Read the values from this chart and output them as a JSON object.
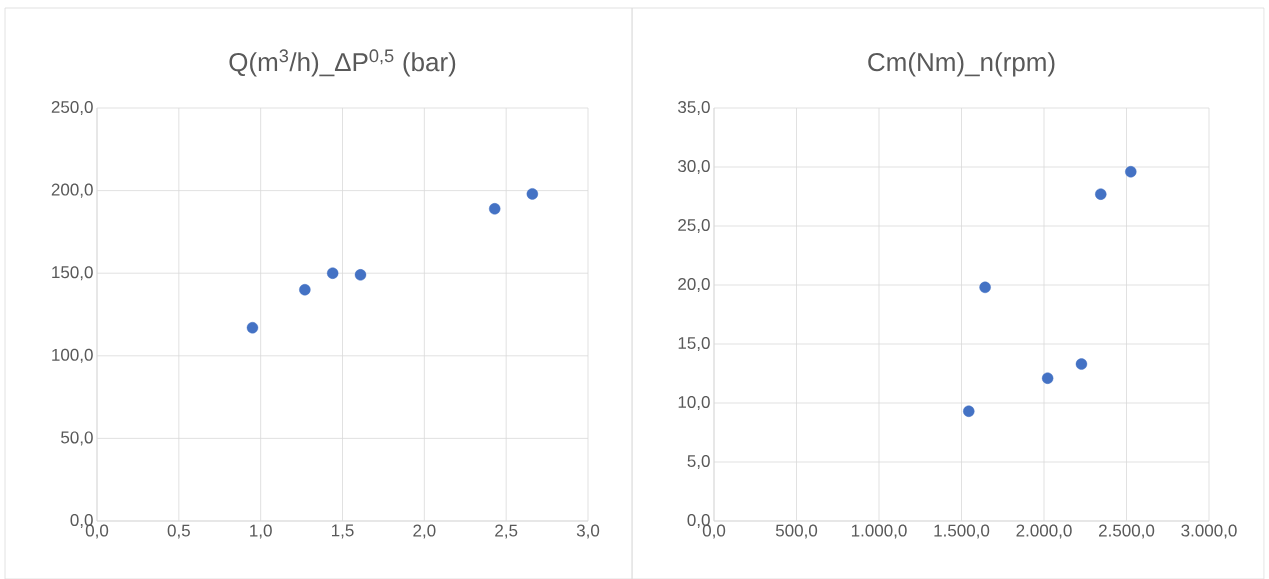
{
  "chart_data": [
    {
      "type": "scatter",
      "title": "Q(m$^{3}$/h)_ΔP$^{0,5}$ (bar)",
      "x": [
        0.95,
        1.27,
        1.44,
        1.61,
        2.43,
        2.66
      ],
      "values": [
        117,
        140,
        150,
        149,
        189,
        198
      ],
      "color": "#4472c4",
      "marker": "circle",
      "grid": true,
      "xlim": [
        0,
        3
      ],
      "ylim": [
        0,
        250
      ],
      "xticks": [
        {
          "value": 0,
          "label": "0,0"
        },
        {
          "value": 0.5,
          "label": "0,5"
        },
        {
          "value": 1,
          "label": "1,0"
        },
        {
          "value": 1.5,
          "label": "1,5"
        },
        {
          "value": 2,
          "label": "2,0"
        },
        {
          "value": 2.5,
          "label": "2,5"
        },
        {
          "value": 3,
          "label": "3,0"
        }
      ],
      "yticks": [
        {
          "value": 0,
          "label": "0,0"
        },
        {
          "value": 50,
          "label": "50,0"
        },
        {
          "value": 100,
          "label": "100,0"
        },
        {
          "value": 150,
          "label": "150,0"
        },
        {
          "value": 200,
          "label": "200,0"
        },
        {
          "value": 250,
          "label": "250,0"
        }
      ]
    },
    {
      "type": "scatter",
      "title": "Cm(Nm)_n(rpm)",
      "x": [
        1544,
        1643,
        2022,
        2227,
        2344,
        2526
      ],
      "values": [
        9.3,
        19.8,
        12.1,
        13.3,
        27.7,
        29.6
      ],
      "color": "#4472c4",
      "marker": "circle",
      "grid": true,
      "xlim": [
        0,
        3000
      ],
      "ylim": [
        0,
        35
      ],
      "xticks": [
        {
          "value": 0,
          "label": "0,0"
        },
        {
          "value": 500,
          "label": "500,0"
        },
        {
          "value": 1000,
          "label": "1.000,0"
        },
        {
          "value": 1500,
          "label": "1.500,0"
        },
        {
          "value": 2000,
          "label": "2.000,0"
        },
        {
          "value": 2500,
          "label": "2.500,0"
        },
        {
          "value": 3000,
          "label": "3.000,0"
        }
      ],
      "yticks": [
        {
          "value": 0,
          "label": "0,0"
        },
        {
          "value": 5,
          "label": "5,0"
        },
        {
          "value": 10,
          "label": "10,0"
        },
        {
          "value": 15,
          "label": "15,0"
        },
        {
          "value": 20,
          "label": "20,0"
        },
        {
          "value": 25,
          "label": "25,0"
        },
        {
          "value": 30,
          "label": "30,0"
        },
        {
          "value": 35,
          "label": "35,0"
        }
      ]
    }
  ]
}
